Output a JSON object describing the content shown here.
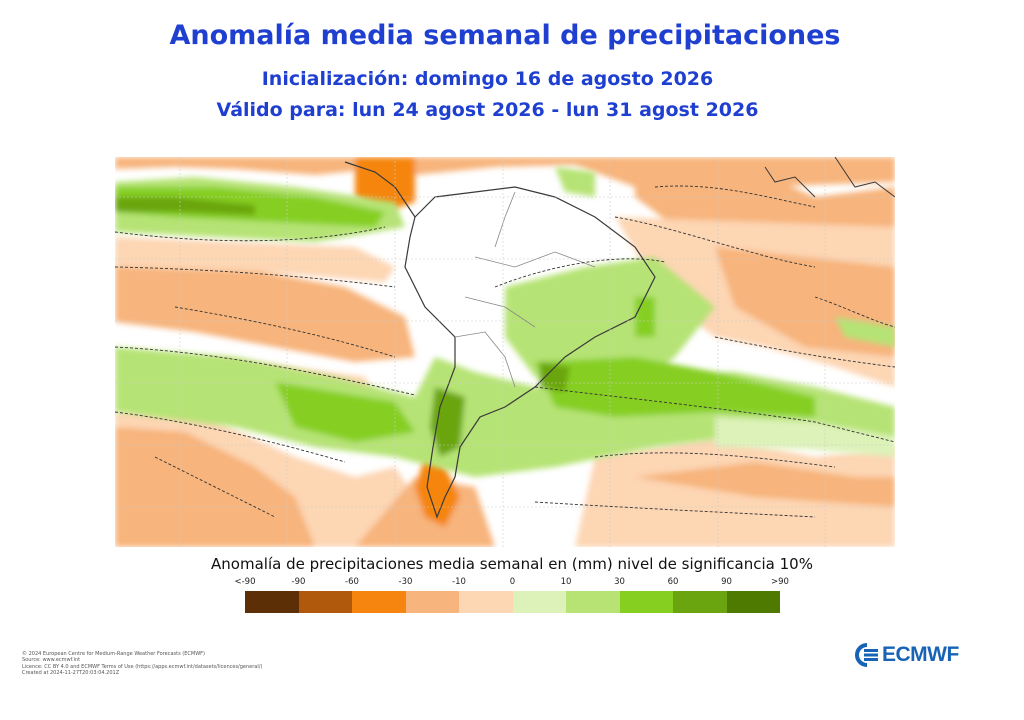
{
  "header": {
    "title": "Anomalía media semanal de precipitaciones",
    "initialization": "Inicialización: domingo 16 de agosto 2026",
    "valid": "Válido para: lun 24 agost 2026 - lun 31 agost 2026"
  },
  "legend": {
    "title": "Anomalía de precipitaciones media semanal en (mm) nivel de significancia 10%",
    "ticks": [
      "<-90",
      "-90",
      "-60",
      "-30",
      "-10",
      "0",
      "10",
      "30",
      "60",
      "90",
      ">90"
    ],
    "colors": [
      "#5c2f06",
      "#b0580c",
      "#f5850f",
      "#f7b47c",
      "#fdd6b4",
      "#ddf2b9",
      "#b6e374",
      "#86cf20",
      "#6aa510",
      "#4f7a02"
    ]
  },
  "colors": {
    "title": "#1f3fd1",
    "logo": "#1763b5",
    "land_border": "#555555",
    "sea": "#ffffff"
  },
  "credits": [
    "© 2024 European Centre for Medium-Range Weather Forecasts (ECMWF)",
    "Source: www.ecmwf.int",
    "Licence: CC BY 4.0 and ECMWF Terms of Use (https://apps.ecmwf.int/datasets/licences/general/)",
    "Created at 2024-11-27T20:03:04.201Z"
  ],
  "logo": {
    "text": "ECMWF",
    "icon": "ecmwf-logo-icon"
  }
}
